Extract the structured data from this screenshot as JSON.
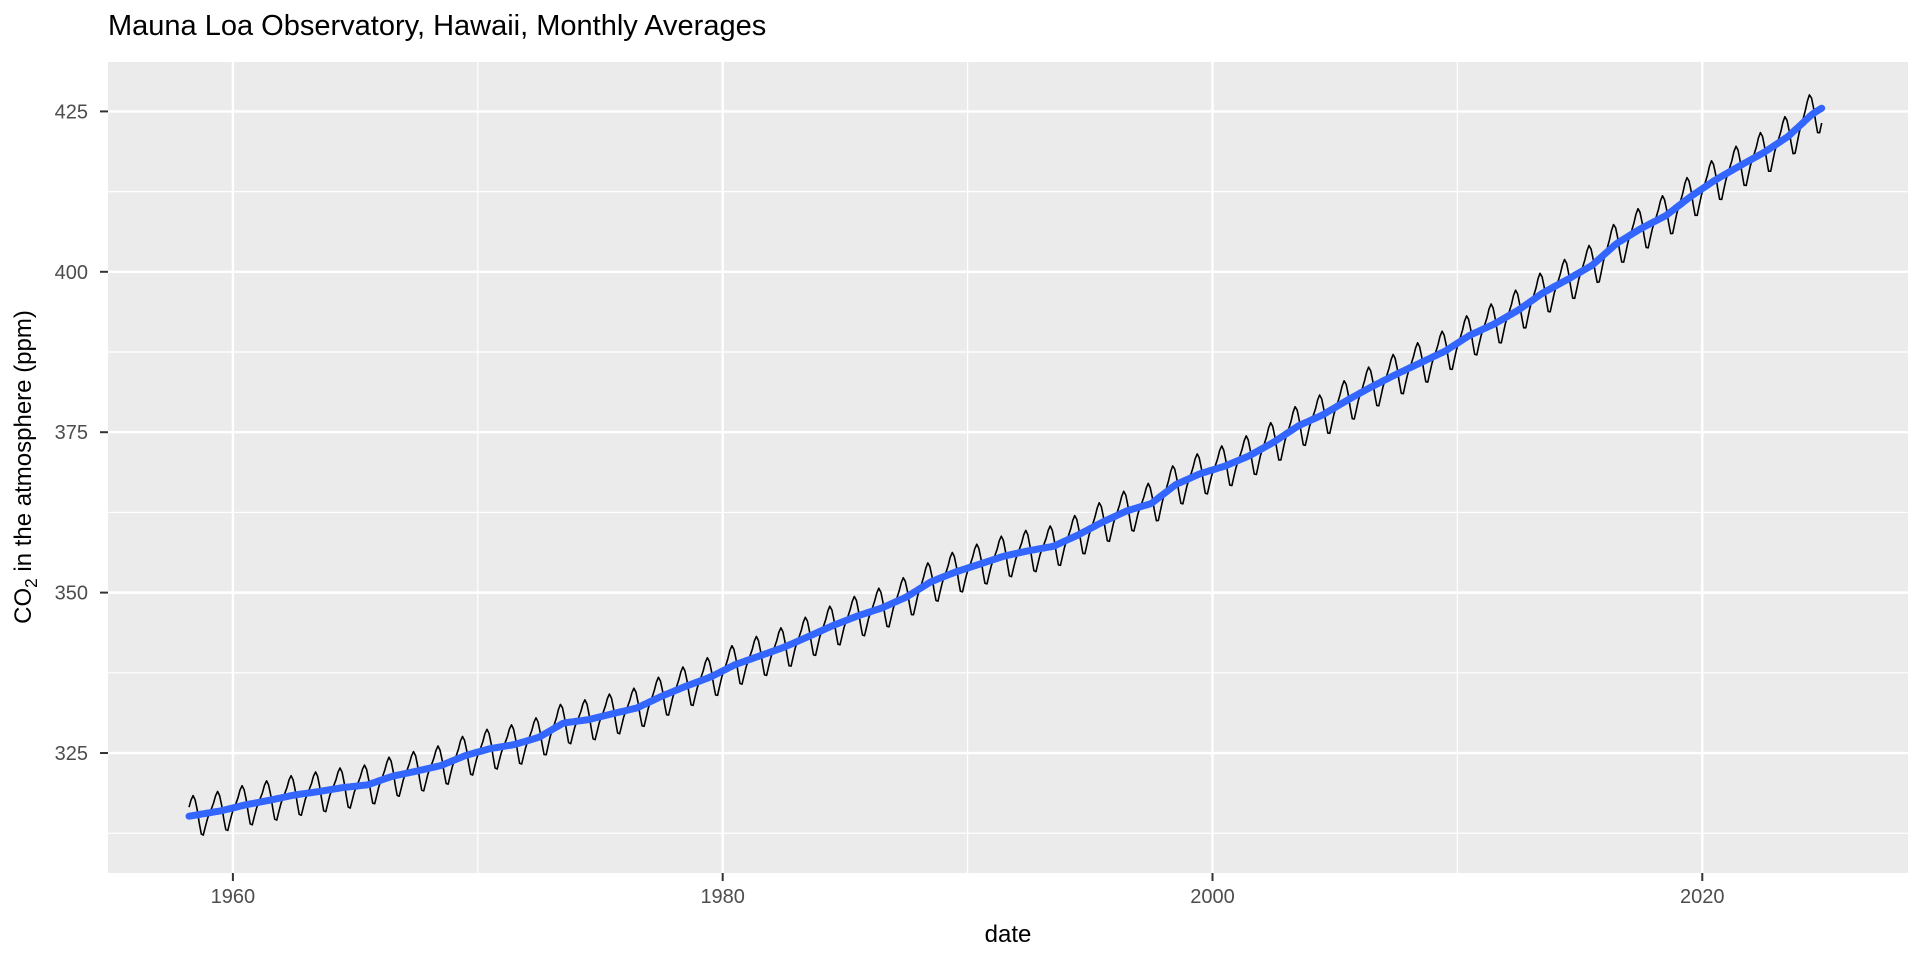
{
  "chart_data": {
    "type": "line",
    "title": "Mauna Loa Observatory, Hawaii, Monthly Averages",
    "xlabel": "date",
    "ylabel": {
      "prefix": "CO",
      "sub": "2",
      "suffix": " in the atmosphere (ppm)"
    },
    "ylabel_plain": "CO2 in the atmosphere (ppm)",
    "legend_position": "none",
    "grid": true,
    "x_ticks": [
      1960,
      1980,
      2000,
      2020
    ],
    "x_minor_ticks": [
      1970,
      1990,
      2010
    ],
    "y_ticks": [
      325,
      350,
      375,
      400,
      425
    ],
    "y_minor_ticks": [
      312.5,
      337.5,
      362.5,
      387.5,
      412.5
    ],
    "x_range": [
      1954.9,
      2028.4
    ],
    "y_range": [
      306.3,
      432.7
    ],
    "colors": {
      "panel_bg": "#EBEBEB",
      "grid_major": "#FFFFFF",
      "grid_minor": "#FFFFFF",
      "tick_label": "#4D4D4D",
      "tick_mark": "#333333",
      "monthly_line": "#000000",
      "smooth_line": "#3366FF"
    },
    "series": [
      {
        "name": "monthly_average_co2",
        "style": "thin-black-line",
        "width": 1.6
      },
      {
        "name": "smooth_trend",
        "style": "thick-blue-line",
        "width": 7
      }
    ],
    "data": {
      "start": {
        "year": 1958,
        "month": 3
      },
      "end": {
        "year": 2024,
        "month": 11
      },
      "annual_means_start_year": 1958,
      "annual_means_ppm": [
        315.34,
        315.98,
        316.91,
        317.64,
        318.45,
        318.99,
        319.62,
        320.04,
        321.37,
        322.18,
        323.05,
        324.62,
        325.68,
        326.32,
        327.46,
        329.68,
        330.19,
        331.12,
        332.03,
        333.84,
        335.41,
        336.84,
        338.76,
        340.12,
        341.48,
        343.15,
        344.87,
        346.35,
        347.61,
        349.31,
        351.69,
        353.2,
        354.45,
        355.7,
        356.54,
        357.21,
        358.96,
        360.97,
        362.74,
        363.88,
        366.84,
        368.54,
        369.71,
        371.32,
        373.45,
        375.98,
        377.7,
        379.98,
        382.09,
        384.02,
        385.83,
        387.64,
        390.1,
        391.85,
        394.06,
        396.74,
        398.81,
        401.01,
        404.41,
        406.76,
        408.72,
        411.66,
        414.24,
        416.45,
        418.56,
        421.08,
        424.61,
        427.0
      ],
      "seasonal_cycle_ppm": [
        -0.1,
        0.6,
        1.4,
        2.5,
        3.1,
        2.4,
        0.8,
        -1.3,
        -3.1,
        -3.3,
        -2.1,
        -0.9
      ],
      "seasonal_amplitude_growth_per_year": 0.0015
    }
  }
}
